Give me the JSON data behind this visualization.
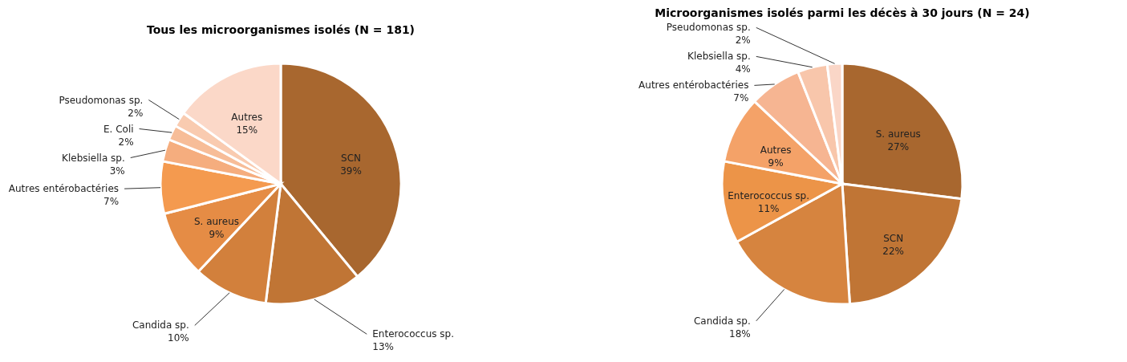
{
  "chart_data": [
    {
      "type": "pie",
      "title": "Tous les microorganismes isolés (N = 181)",
      "categories": [
        "SCN",
        "Enterococcus sp.",
        "Candida sp.",
        "S. aureus",
        "Autres entérobactéries",
        "Klebsiella sp.",
        "E. Coli",
        "Pseudomonas sp.",
        "Autres"
      ],
      "values": [
        39,
        13,
        10,
        9,
        7,
        3,
        2,
        2,
        15
      ],
      "value_labels": [
        "39%",
        "13%",
        "10%",
        "9%",
        "7%",
        "3%",
        "2%",
        "2%",
        "15%"
      ],
      "colors": [
        "#a8672f",
        "#c07535",
        "#d2803c",
        "#e58c45",
        "#f49a4f",
        "#f5ad7e",
        "#f7bd98",
        "#f9cbb0",
        "#fbd8c8"
      ],
      "data_labels": true,
      "legend": false
    },
    {
      "type": "pie",
      "title": "Microorganismes isolés parmi les décès à 30 jours (N = 24)",
      "categories": [
        "S. aureus",
        "SCN",
        "Candida sp.",
        "Enterococcus sp.",
        "Autres",
        "Autres entérobactéries",
        "Klebsiella sp.",
        "Pseudomonas sp."
      ],
      "values": [
        27,
        22,
        18,
        11,
        9,
        7,
        4,
        2
      ],
      "value_labels": [
        "27%",
        "22%",
        "18%",
        "11%",
        "9%",
        "7%",
        "4%",
        "2%"
      ],
      "colors": [
        "#a8672f",
        "#c07535",
        "#d6843f",
        "#ec9448",
        "#f4a268",
        "#f6b592",
        "#f8c6ab",
        "#fad6c7"
      ],
      "data_labels": true,
      "legend": false
    }
  ]
}
